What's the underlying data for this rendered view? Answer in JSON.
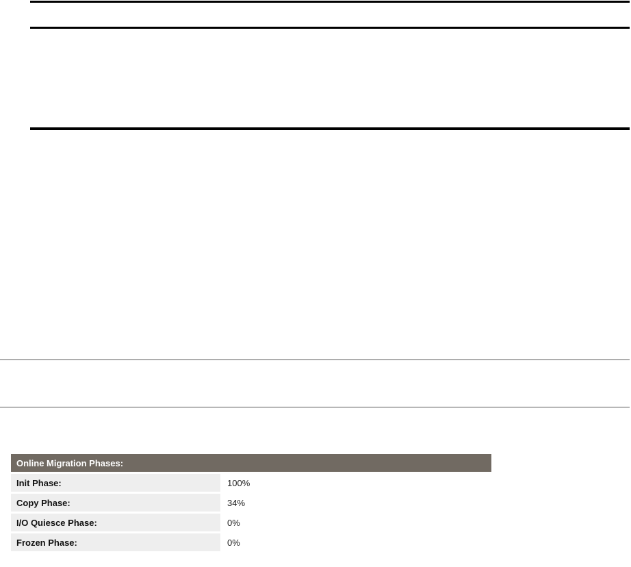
{
  "phases": {
    "title": "Online Migration Phases:",
    "rows": [
      {
        "label": "Init Phase:",
        "value": "100%"
      },
      {
        "label": "Copy Phase:",
        "value": "34%"
      },
      {
        "label": "I/O Quiesce Phase:",
        "value": "0%"
      },
      {
        "label": "Frozen Phase:",
        "value": "0%"
      }
    ]
  }
}
